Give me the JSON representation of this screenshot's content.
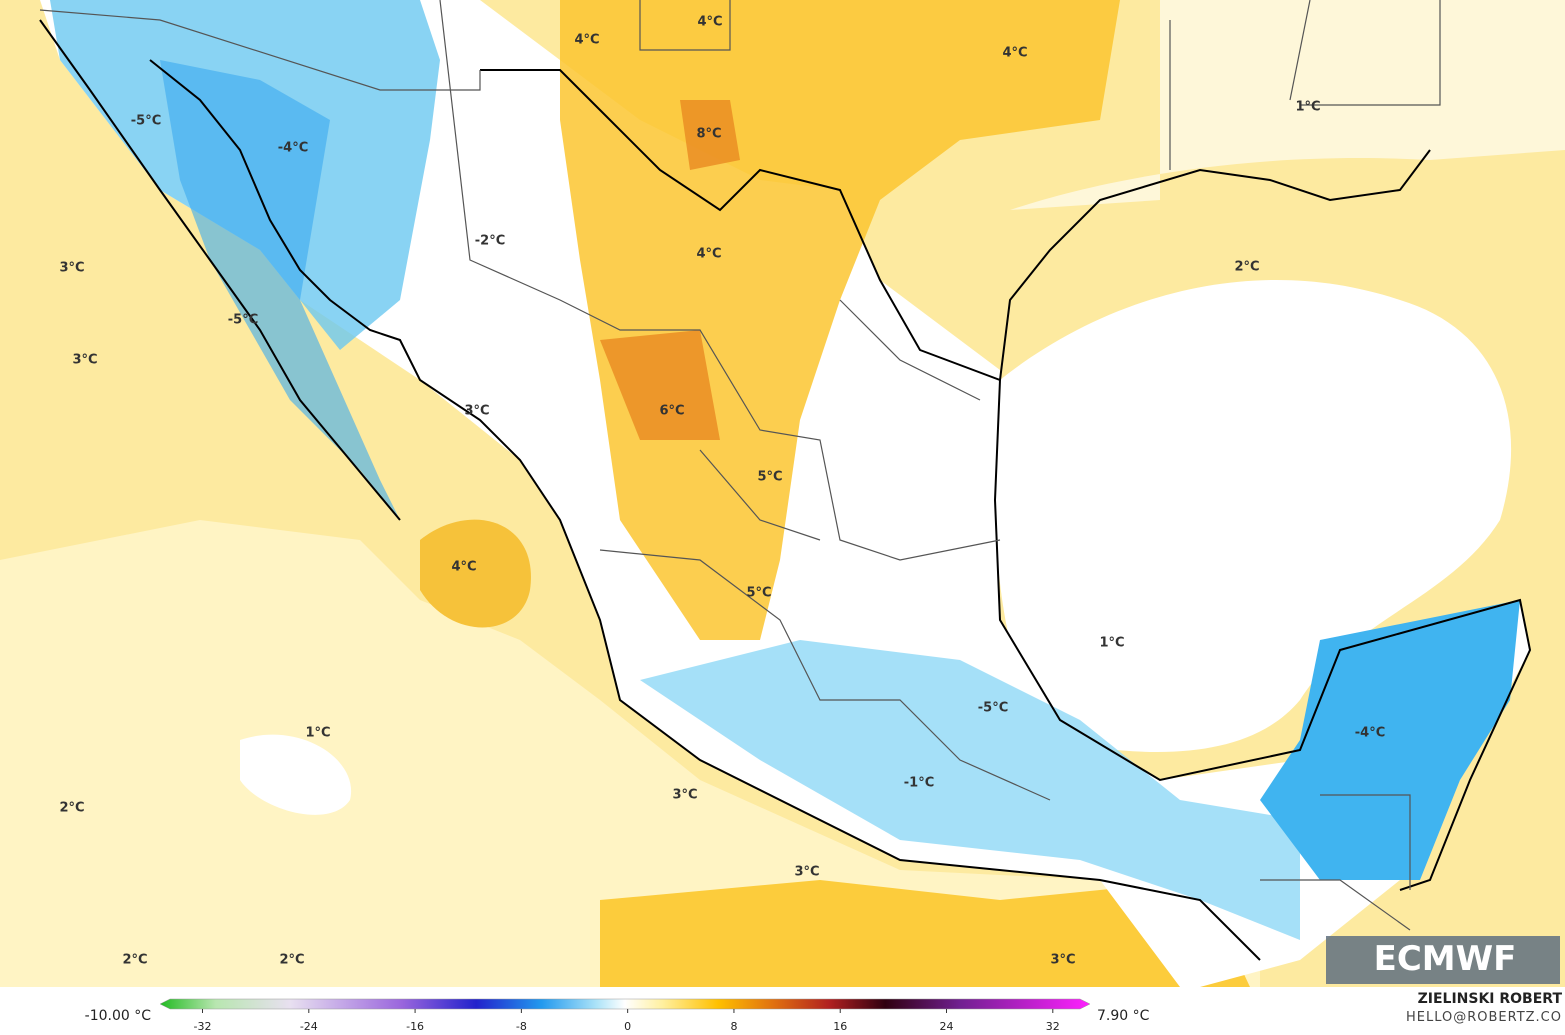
{
  "logo": "ECMWF",
  "labels": [
    "4°C",
    "4°C",
    "4°C",
    "1°C",
    "-5°C",
    "8°C",
    "-4°C",
    "-2°C",
    "4°C",
    "3°C",
    "2°C",
    "-5°C",
    "3°C",
    "3°C",
    "6°C",
    "5°C",
    "4°C",
    "5°C",
    "1°C",
    "-5°C",
    "-4°C",
    "1°C",
    "-1°C",
    "3°C",
    "2°C",
    "3°C",
    "2°C",
    "2°C",
    "3°C"
  ],
  "colorbar": {
    "min_label": "-10.00 °C",
    "max_label": "7.90 °C",
    "ticks": [
      -32,
      -24,
      -16,
      -8,
      0,
      8,
      16,
      24,
      32
    ],
    "lim": [
      -35.2,
      34.8
    ]
  },
  "credit": {
    "name": "ZIELINSKI ROBERT",
    "email": "HELLO@ROBERTZ.CO"
  }
}
